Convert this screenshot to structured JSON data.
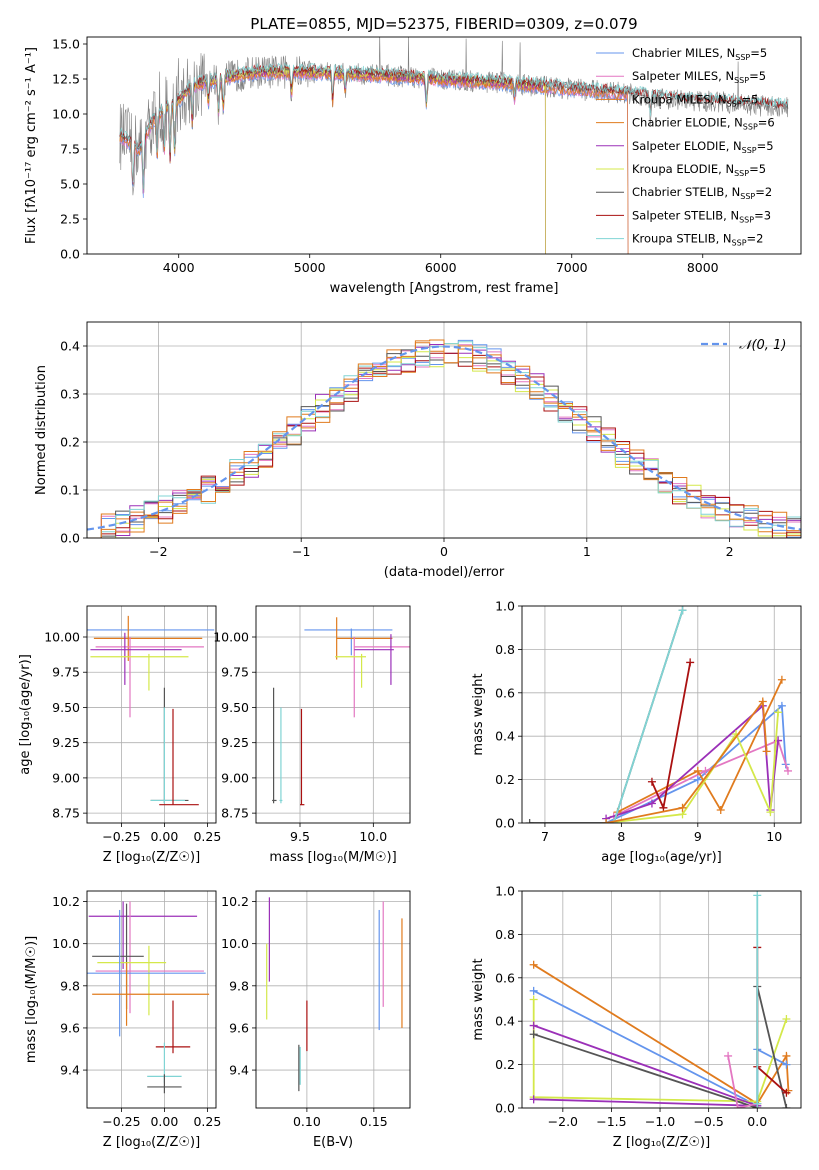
{
  "figure": {
    "title": "PLATE=0855, MJD=52375, FIBERID=0309, z=0.079"
  },
  "colors": {
    "Chabrier MILES": "#6495ed",
    "Salpeter MILES": "#e377c2",
    "Kroupa MILES": "#e07b1e",
    "Chabrier ELODIE": "#e07b1e",
    "Salpeter ELODIE": "#9b30b8",
    "Kroupa ELODIE": "#d4e84a",
    "Chabrier STELIB": "#555555",
    "Salpeter STELIB": "#aa1111",
    "Kroupa STELIB": "#80d4d4",
    "data": "#808080",
    "gauss": "#6495ed"
  },
  "chart_data": [
    {
      "id": "spectrum",
      "type": "line",
      "title": "PLATE=0855, MJD=52375, FIBERID=0309, z=0.079",
      "xlabel": "wavelength [Angstrom, rest frame]",
      "ylabel": "Flux [fλ10⁻¹⁷ erg cm⁻² s⁻¹ A⁻¹]",
      "xlim": [
        3300,
        8750
      ],
      "ylim": [
        0,
        15.5
      ],
      "xticks": [
        "4000",
        "5000",
        "6000",
        "7000",
        "8000"
      ],
      "yticks": [
        "0.0",
        "2.5",
        "5.0",
        "7.5",
        "10.0",
        "12.5",
        "15.0"
      ],
      "legend_position": "top-right",
      "legend": [
        "Chabrier MILES, N_SSP=5",
        "Salpeter MILES, N_SSP=5",
        "Kroupa MILES, N_SSP=5",
        "Chabrier ELODIE, N_SSP=6",
        "Salpeter ELODIE, N_SSP=5",
        "Kroupa ELODIE, N_SSP=5",
        "Chabrier STELIB, N_SSP=2",
        "Salpeter STELIB, N_SSP=3",
        "Kroupa STELIB, N_SSP=2"
      ],
      "legend_display": [
        [
          "Chabrier MILES, N",
          "SSP",
          "=5"
        ],
        [
          "Salpeter MILES, N",
          "SSP",
          "=5"
        ],
        [
          "Kroupa MILES, N",
          "SSP",
          "=5"
        ],
        [
          "Chabrier ELODIE, N",
          "SSP",
          "=6"
        ],
        [
          "Salpeter ELODIE, N",
          "SSP",
          "=5"
        ],
        [
          "Kroupa ELODIE, N",
          "SSP",
          "=5"
        ],
        [
          "Chabrier STELIB, N",
          "SSP",
          "=2"
        ],
        [
          "Salpeter STELIB, N",
          "SSP",
          "=3"
        ],
        [
          "Kroupa STELIB, N",
          "SSP",
          "=2"
        ]
      ],
      "continuum": [
        [
          3550,
          8.5
        ],
        [
          3620,
          8.0
        ],
        [
          3700,
          7.5
        ],
        [
          3800,
          9.5
        ],
        [
          3900,
          10.5
        ],
        [
          4000,
          11.0
        ],
        [
          4100,
          12.0
        ],
        [
          4300,
          12.5
        ],
        [
          4600,
          13.0
        ],
        [
          5000,
          13.0
        ],
        [
          5500,
          12.8
        ],
        [
          6000,
          12.5
        ],
        [
          6500,
          12.2
        ],
        [
          7000,
          11.8
        ],
        [
          7400,
          11.5
        ],
        [
          7800,
          11.0
        ],
        [
          8200,
          10.8
        ],
        [
          8600,
          10.5
        ]
      ],
      "grid": false
    },
    {
      "id": "residuals",
      "type": "histogram",
      "xlabel": "(data-model)/error",
      "ylabel": "Normed distribution",
      "xlim": [
        -2.5,
        2.5
      ],
      "ylim": [
        0,
        0.45
      ],
      "xticks": [
        "−2",
        "−1",
        "0",
        "1",
        "2"
      ],
      "yticks": [
        "0.0",
        "0.1",
        "0.2",
        "0.3",
        "0.4"
      ],
      "legend_position": "top-right",
      "legend": [
        "𝒩(0, 1)"
      ],
      "gauss_mean": 0,
      "gauss_sigma": 1,
      "bin_width": 0.1,
      "grid": true
    },
    {
      "id": "age_vs_Z",
      "type": "errorbar",
      "xlabel": "Z [log₁₀(Z/Z☉)]",
      "ylabel": "age  [log₁₀(age/yr)]",
      "xlim": [
        -0.45,
        0.3
      ],
      "ylim": [
        8.68,
        10.22
      ],
      "xticks": [
        "−0.25",
        "0.00",
        "0.25"
      ],
      "yticks": [
        "8.75",
        "9.00",
        "9.25",
        "9.50",
        "9.75",
        "10.00"
      ],
      "points": [
        {
          "series": "Chabrier MILES",
          "x": -0.24,
          "y": 10.05,
          "xerr": [
            0.67,
            0.53
          ],
          "yerr": [
            0,
            0
          ]
        },
        {
          "series": "Chabrier ELODIE",
          "x": -0.21,
          "y": 9.99,
          "xerr": [
            0.2,
            0.43
          ],
          "yerr": [
            0.16,
            0.16
          ]
        },
        {
          "series": "Salpeter MILES",
          "x": -0.2,
          "y": 9.93,
          "xerr": [
            0.2,
            0.43
          ],
          "yerr": [
            0.5,
            0.07
          ]
        },
        {
          "series": "Salpeter ELODIE",
          "x": -0.23,
          "y": 9.91,
          "xerr": [
            0.2,
            0.33
          ],
          "yerr": [
            0.25,
            0.12
          ]
        },
        {
          "series": "Kroupa ELODIE",
          "x": -0.09,
          "y": 9.86,
          "xerr": [
            0.34,
            0.23
          ],
          "yerr": [
            0.24,
            0.02
          ]
        },
        {
          "series": "Chabrier STELIB",
          "x": 0,
          "y": 8.84,
          "xerr": [
            0.08,
            0.14
          ],
          "yerr": [
            0.02,
            0.8
          ]
        },
        {
          "series": "Kroupa STELIB",
          "x": 0,
          "y": 8.84,
          "xerr": [
            0.08,
            0.12
          ],
          "yerr": [
            0.02,
            0.66
          ]
        },
        {
          "series": "Salpeter STELIB",
          "x": 0.05,
          "y": 8.81,
          "xerr": [
            0.08,
            0.15
          ],
          "yerr": [
            0,
            0.68
          ]
        }
      ],
      "grid": true
    },
    {
      "id": "age_vs_mass",
      "type": "errorbar",
      "xlabel": "mass [log₁₀(M/M☉)]",
      "ylabel": "",
      "xlim": [
        9.2,
        10.25
      ],
      "ylim": [
        8.68,
        10.22
      ],
      "xticks": [
        "9.5",
        "10.0"
      ],
      "yticks": [
        "8.75",
        "9.00",
        "9.25",
        "9.50",
        "9.75",
        "10.00"
      ],
      "points": [
        {
          "series": "Chabrier MILES",
          "x": 9.85,
          "y": 10.05,
          "xerr": [
            0.32,
            0.28
          ],
          "yerr": [
            0.18,
            0.01
          ]
        },
        {
          "series": "Kroupa MILES",
          "x": 9.75,
          "y": 9.99,
          "xerr": [
            0,
            0.38
          ],
          "yerr": [
            0.15,
            0.15
          ]
        },
        {
          "series": "Salpeter MILES",
          "x": 9.87,
          "y": 9.93,
          "xerr": [
            0,
            0.38
          ],
          "yerr": [
            0.5,
            0.07
          ]
        },
        {
          "series": "Salpeter ELODIE",
          "x": 10.12,
          "y": 9.91,
          "xerr": [
            0.25,
            0.02
          ],
          "yerr": [
            0.25,
            0.11
          ]
        },
        {
          "series": "Kroupa ELODIE",
          "x": 9.92,
          "y": 9.86,
          "xerr": [
            0.18,
            0.03
          ],
          "yerr": [
            0.22,
            0.02
          ]
        },
        {
          "series": "Chabrier STELIB",
          "x": 9.32,
          "y": 8.84,
          "xerr": [
            0.01,
            0.02
          ],
          "yerr": [
            0.02,
            0.8
          ]
        },
        {
          "series": "Kroupa STELIB",
          "x": 9.37,
          "y": 8.84,
          "xerr": [
            0.01,
            0.01
          ],
          "yerr": [
            0.02,
            0.66
          ]
        },
        {
          "series": "Salpeter STELIB",
          "x": 9.51,
          "y": 8.81,
          "xerr": [
            0.01,
            0.02
          ],
          "yerr": [
            0,
            0.68
          ]
        }
      ],
      "grid": true
    },
    {
      "id": "weight_vs_age",
      "type": "line",
      "xlabel": "age  [log₁₀(age/yr)]",
      "ylabel": "mass weight",
      "xlim": [
        6.7,
        10.35
      ],
      "ylim": [
        0,
        1.0
      ],
      "xticks": [
        "7",
        "8",
        "9",
        "10"
      ],
      "yticks": [
        "0.0",
        "0.2",
        "0.4",
        "0.6",
        "0.8",
        "1.0"
      ],
      "series": [
        {
          "name": "Chabrier MILES",
          "points": [
            [
              7.8,
              0.0
            ],
            [
              9.0,
              0.2
            ],
            [
              10.1,
              0.54
            ],
            [
              10.15,
              0.27
            ]
          ]
        },
        {
          "name": "Salpeter MILES",
          "points": [
            [
              7.9,
              0.03
            ],
            [
              9.1,
              0.24
            ],
            [
              10.05,
              0.38
            ],
            [
              10.18,
              0.24
            ]
          ]
        },
        {
          "name": "Kroupa MILES",
          "points": [
            [
              7.95,
              0.05
            ],
            [
              9.0,
              0.24
            ],
            [
              9.3,
              0.06
            ],
            [
              10.1,
              0.66
            ]
          ]
        },
        {
          "name": "Salpeter ELODIE",
          "points": [
            [
              7.8,
              0.02
            ],
            [
              8.4,
              0.09
            ],
            [
              9.85,
              0.54
            ],
            [
              9.95,
              0.06
            ],
            [
              10.05,
              0.38
            ]
          ]
        },
        {
          "name": "Kroupa ELODIE",
          "points": [
            [
              7.8,
              0.0
            ],
            [
              8.8,
              0.04
            ],
            [
              9.5,
              0.41
            ],
            [
              9.95,
              0.05
            ],
            [
              10.05,
              0.51
            ]
          ]
        },
        {
          "name": "Chabrier STELIB",
          "points": [
            [
              6.8,
              0.0
            ],
            [
              7.9,
              0.0
            ],
            [
              8.8,
              0.98
            ]
          ]
        },
        {
          "name": "Kroupa STELIB",
          "points": [
            [
              7.9,
              0.0
            ],
            [
              8.8,
              0.98
            ]
          ]
        },
        {
          "name": "Salpeter STELIB",
          "points": [
            [
              8.4,
              0.19
            ],
            [
              8.55,
              0.07
            ],
            [
              8.9,
              0.74
            ]
          ]
        },
        {
          "name": "Chabrier ELODIE",
          "points": [
            [
              7.8,
              0.0
            ],
            [
              8.8,
              0.07
            ],
            [
              9.85,
              0.56
            ],
            [
              9.9,
              0.33
            ]
          ]
        }
      ],
      "grid": true
    },
    {
      "id": "mass_vs_Z",
      "type": "errorbar",
      "xlabel": "Z [log₁₀(Z/Z☉)]",
      "ylabel": "mass [log₁₀(M/M☉)]",
      "xlim": [
        -0.45,
        0.3
      ],
      "ylim": [
        9.22,
        10.25
      ],
      "xticks": [
        "−0.25",
        "0.00",
        "0.25"
      ],
      "yticks": [
        "9.4",
        "9.6",
        "9.8",
        "10.0",
        "10.2"
      ],
      "points": [
        {
          "series": "Salpeter ELODIE",
          "x": -0.24,
          "y": 10.13,
          "xerr": [
            0.2,
            0.43
          ],
          "yerr": [
            0.25,
            0.07
          ]
        },
        {
          "series": "Salpeter MILES",
          "x": -0.2,
          "y": 9.87,
          "xerr": [
            0.2,
            0.43
          ],
          "yerr": [
            0.2,
            0.33
          ]
        },
        {
          "series": "Chabrier STELIB",
          "x": -0.22,
          "y": 9.94,
          "xerr": [
            0.2,
            0.1
          ],
          "yerr": [
            0.25,
            0.25
          ]
        },
        {
          "series": "Kroupa ELODIE",
          "x": -0.09,
          "y": 9.91,
          "xerr": [
            0.3,
            0.1
          ],
          "yerr": [
            0.25,
            0.08
          ]
        },
        {
          "series": "Chabrier MILES",
          "x": -0.26,
          "y": 9.86,
          "xerr": [
            0.33,
            0.5
          ],
          "yerr": [
            0.3,
            0.3
          ]
        },
        {
          "series": "Kroupa MILES",
          "x": -0.22,
          "y": 9.76,
          "xerr": [
            0.2,
            0.48
          ],
          "yerr": [
            0.15,
            0.15
          ]
        },
        {
          "series": "Salpeter STELIB",
          "x": 0.05,
          "y": 9.51,
          "xerr": [
            0.1,
            0.1
          ],
          "yerr": [
            0.03,
            0.22
          ]
        },
        {
          "series": "Kroupa STELIB",
          "x": 0,
          "y": 9.37,
          "xerr": [
            0.1,
            0.1
          ],
          "yerr": [
            0.03,
            0.16
          ]
        },
        {
          "series": "Chabrier STELIB",
          "x": 0,
          "y": 9.32,
          "xerr": [
            0.1,
            0.1
          ],
          "yerr": [
            0.03,
            0.06
          ]
        }
      ],
      "grid": true
    },
    {
      "id": "mass_vs_EBV",
      "type": "errorbar",
      "xlabel": "E(B-V)",
      "ylabel": "",
      "xlim": [
        0.062,
        0.177
      ],
      "ylim": [
        9.22,
        10.25
      ],
      "xticks": [
        "0.10",
        "0.15"
      ],
      "yticks": [
        "9.4",
        "9.6",
        "9.8",
        "10.0",
        "10.2"
      ],
      "points": [
        {
          "series": "Salpeter ELODIE",
          "x": 0.072,
          "y": 10.12,
          "yerr": [
            0.3,
            0.1
          ]
        },
        {
          "series": "Kroupa ELODIE",
          "x": 0.07,
          "y": 9.9,
          "yerr": [
            0.26,
            0.1
          ]
        },
        {
          "series": "Chabrier STELIB",
          "x": 0.094,
          "y": 9.42,
          "yerr": [
            0.12,
            0.1
          ]
        },
        {
          "series": "Kroupa STELIB",
          "x": 0.095,
          "y": 9.43,
          "yerr": [
            0.1,
            0.08
          ]
        },
        {
          "series": "Salpeter STELIB",
          "x": 0.1,
          "y": 9.61,
          "yerr": [
            0.12,
            0.12
          ]
        },
        {
          "series": "Chabrier MILES",
          "x": 0.154,
          "y": 9.86,
          "yerr": [
            0.27,
            0.3
          ]
        },
        {
          "series": "Salpeter MILES",
          "x": 0.157,
          "y": 9.9,
          "yerr": [
            0.2,
            0.3
          ]
        },
        {
          "series": "Kroupa MILES",
          "x": 0.171,
          "y": 9.86,
          "yerr": [
            0.26,
            0.26
          ]
        }
      ],
      "grid": true
    },
    {
      "id": "weight_vs_Z",
      "type": "line",
      "xlabel": "Z [log₁₀(Z/Z☉)]",
      "ylabel": "mass weight",
      "xlim": [
        -2.42,
        0.45
      ],
      "ylim": [
        0,
        1.0
      ],
      "xticks": [
        "−2.0",
        "−1.5",
        "−1.0",
        "−0.5",
        "0.0"
      ],
      "yticks": [
        "0.0",
        "0.2",
        "0.4",
        "0.6",
        "0.8",
        "1.0"
      ],
      "series": [
        {
          "name": "Kroupa MILES",
          "points": [
            [
              -2.3,
              0.66
            ],
            [
              0.0,
              0.02
            ],
            [
              0.3,
              0.24
            ],
            [
              0.32,
              0.08
            ]
          ]
        },
        {
          "name": "Chabrier MILES",
          "points": [
            [
              -2.3,
              0.54
            ],
            [
              0.0,
              0.01
            ],
            [
              0.0,
              0.27
            ],
            [
              0.3,
              0.2
            ]
          ]
        },
        {
          "name": "Kroupa ELODIE",
          "points": [
            [
              -2.3,
              0.5
            ],
            [
              -2.3,
              0.05
            ],
            [
              0.0,
              0.03
            ],
            [
              0.3,
              0.41
            ]
          ]
        },
        {
          "name": "Salpeter ELODIE",
          "points": [
            [
              -2.3,
              0.38
            ],
            [
              0.0,
              0.01
            ],
            [
              -2.3,
              0.04
            ]
          ]
        },
        {
          "name": "Chabrier STELIB",
          "points": [
            [
              -2.3,
              0.34
            ],
            [
              0.0,
              0.0
            ],
            [
              0.0,
              0.56
            ],
            [
              0.3,
              0.0
            ]
          ]
        },
        {
          "name": "Salpeter MILES",
          "points": [
            [
              -0.3,
              0.24
            ],
            [
              -0.2,
              0.0
            ],
            [
              0.0,
              0.02
            ]
          ]
        },
        {
          "name": "Salpeter STELIB",
          "points": [
            [
              0.0,
              0.74
            ],
            [
              0.0,
              0.19
            ],
            [
              0.3,
              0.07
            ]
          ]
        },
        {
          "name": "Kroupa STELIB",
          "points": [
            [
              0.0,
              0.98
            ],
            [
              0.0,
              0.02
            ]
          ]
        }
      ],
      "grid": true
    }
  ]
}
